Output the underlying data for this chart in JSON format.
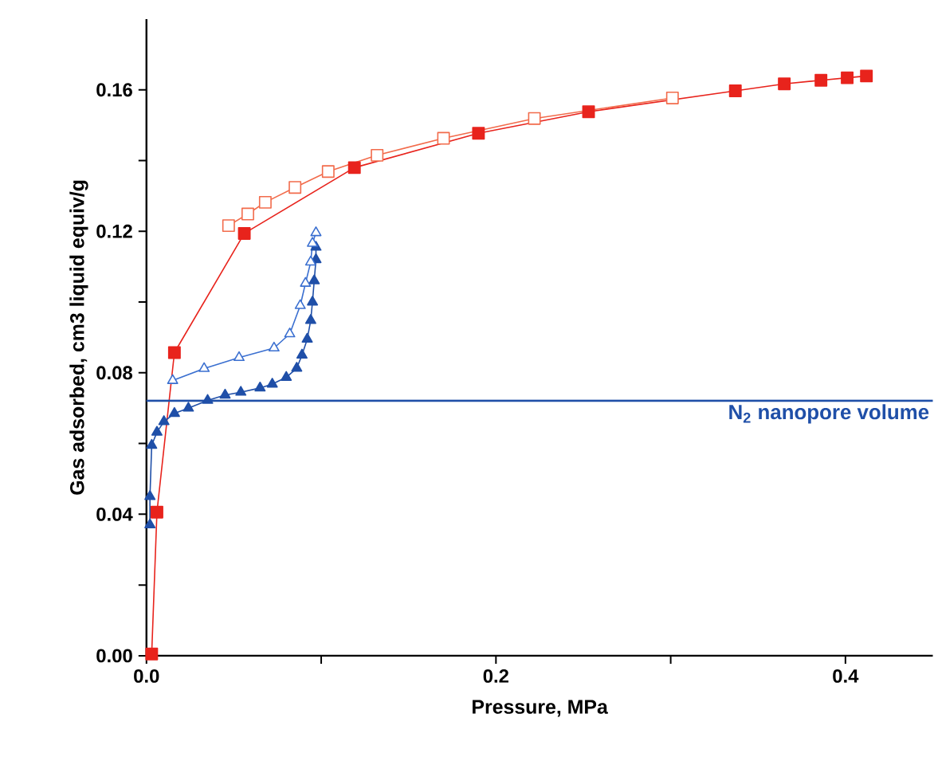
{
  "chart_data": {
    "type": "line",
    "xlabel": "Pressure, MPa",
    "ylabel": "Gas adsorbed, cm3 liquid equiv/g",
    "xlim": [
      0,
      0.45
    ],
    "ylim": [
      0,
      0.18
    ],
    "xticks": [
      {
        "value": 0,
        "label": "0.0"
      },
      {
        "value": 0.1,
        "label": null
      },
      0.2,
      {
        "value": 0.3,
        "label": null
      },
      0.4
    ],
    "yticks": [
      {
        "value": 0,
        "label": "0.00"
      },
      {
        "value": 0.02,
        "label": null
      },
      0.04,
      {
        "value": 0.06,
        "label": null
      },
      0.08,
      {
        "value": 0.1,
        "label": null
      },
      0.12,
      {
        "value": 0.14,
        "label": null
      },
      0.16
    ],
    "series": [
      {
        "color": "#e8231c",
        "marker": "square",
        "x": [
          0.003,
          0.006,
          0.016,
          0.056,
          0.119,
          0.19,
          0.253,
          0.337,
          0.365,
          0.386,
          0.401,
          0.412
        ],
        "values": [
          0.0005,
          0.0406,
          0.0857,
          0.1194,
          0.138,
          0.1477,
          0.1538,
          0.1597,
          0.1617,
          0.1627,
          0.1634,
          0.1639
        ]
      },
      {
        "color": "#f26b4b",
        "marker": "square-open",
        "x": [
          0.301,
          0.222,
          0.17,
          0.132,
          0.104,
          0.085,
          0.068,
          0.058,
          0.047
        ],
        "values": [
          0.1577,
          0.1519,
          0.1463,
          0.1415,
          0.1369,
          0.1324,
          0.1282,
          0.1249,
          0.1216
        ]
      },
      {
        "color": "#1f4fa8",
        "marker": "triangle",
        "x": [
          0.002,
          0.002,
          0.003,
          0.006,
          0.01,
          0.016,
          0.024,
          0.035,
          0.045,
          0.054,
          0.065,
          0.072,
          0.08,
          0.086,
          0.089,
          0.092,
          0.094,
          0.095,
          0.096,
          0.097,
          0.097
        ],
        "values": [
          0.037,
          0.045,
          0.0595,
          0.0632,
          0.0662,
          0.0685,
          0.07,
          0.0722,
          0.0737,
          0.0745,
          0.0757,
          0.0768,
          0.0787,
          0.0813,
          0.085,
          0.0895,
          0.0948,
          0.1,
          0.106,
          0.112,
          0.1155
        ]
      },
      {
        "color": "#3a6fd0",
        "marker": "triangle-open",
        "x": [
          0.097,
          0.095,
          0.094,
          0.091,
          0.088,
          0.082,
          0.073,
          0.053,
          0.033,
          0.015
        ],
        "values": [
          0.1196,
          0.1166,
          0.1113,
          0.1053,
          0.099,
          0.091,
          0.087,
          0.0843,
          0.0812,
          0.0778
        ]
      }
    ],
    "ref_lines": [
      {
        "axis": "y",
        "value": 0.0721,
        "label": "N$_{2}$ nanopore volume",
        "color": "#1f4fa8"
      }
    ]
  }
}
